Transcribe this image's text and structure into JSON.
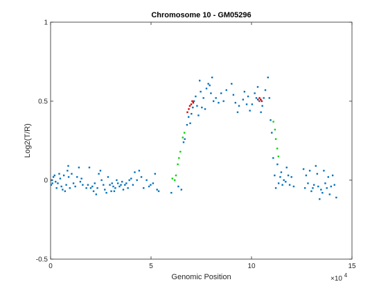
{
  "chart_data": {
    "type": "scatter",
    "title": "Chromosome 10 - GM05296",
    "xlabel": "Genomic Position",
    "ylabel": "Log2(T/R)",
    "x_exponent_label": "×10",
    "x_exponent_power": "4",
    "xlim": [
      0,
      150000
    ],
    "ylim": [
      -0.5,
      1
    ],
    "x_ticks": [
      {
        "value": 0,
        "label": "0"
      },
      {
        "value": 50000,
        "label": "5"
      },
      {
        "value": 100000,
        "label": "10"
      },
      {
        "value": 150000,
        "label": "15"
      }
    ],
    "y_ticks": [
      {
        "value": -0.5,
        "label": "-0.5"
      },
      {
        "value": 0,
        "label": "0"
      },
      {
        "value": 0.5,
        "label": "0.5"
      },
      {
        "value": 1,
        "label": "1"
      }
    ],
    "grid": false,
    "box": true,
    "series": [
      {
        "color": "#0072BD",
        "marker": "dot",
        "points": [
          [
            300,
            -0.03
          ],
          [
            600,
            0.0
          ],
          [
            900,
            -0.02
          ],
          [
            1400,
            0.02
          ],
          [
            2000,
            0.03
          ],
          [
            2500,
            -0.01
          ],
          [
            3000,
            -0.05
          ],
          [
            3600,
            -0.02
          ],
          [
            4300,
            0.04
          ],
          [
            4800,
            0.01
          ],
          [
            5400,
            -0.04
          ],
          [
            6000,
            -0.06
          ],
          [
            6600,
            0.03
          ],
          [
            7200,
            -0.07
          ],
          [
            7800,
            -0.03
          ],
          [
            8400,
            0.06
          ],
          [
            8800,
            0.09
          ],
          [
            9000,
            0.02
          ],
          [
            9600,
            -0.05
          ],
          [
            10500,
            0.04
          ],
          [
            11400,
            -0.02
          ],
          [
            12300,
            -0.04
          ],
          [
            13200,
            0.02
          ],
          [
            14100,
            0.08
          ],
          [
            14800,
            -0.01
          ],
          [
            15400,
            0.01
          ],
          [
            16000,
            -0.03
          ],
          [
            17800,
            -0.05
          ],
          [
            18600,
            -0.03
          ],
          [
            19300,
            0.08
          ],
          [
            20000,
            -0.05
          ],
          [
            20800,
            -0.04
          ],
          [
            21400,
            -0.07
          ],
          [
            22000,
            -0.02
          ],
          [
            22700,
            -0.09
          ],
          [
            23300,
            -0.05
          ],
          [
            24000,
            0.04
          ],
          [
            24800,
            0.06
          ],
          [
            25400,
            0.0
          ],
          [
            26300,
            -0.03
          ],
          [
            27000,
            -0.06
          ],
          [
            27800,
            -0.08
          ],
          [
            28600,
            0.02
          ],
          [
            29500,
            -0.03
          ],
          [
            30200,
            -0.07
          ],
          [
            30600,
            -0.02
          ],
          [
            31200,
            -0.04
          ],
          [
            31700,
            -0.07
          ],
          [
            32200,
            -0.05
          ],
          [
            32900,
            0.0
          ],
          [
            33500,
            -0.02
          ],
          [
            34300,
            -0.04
          ],
          [
            35000,
            -0.03
          ],
          [
            35600,
            -0.01
          ],
          [
            36200,
            -0.06
          ],
          [
            37000,
            -0.03
          ],
          [
            37700,
            -0.02
          ],
          [
            38500,
            -0.05
          ],
          [
            39200,
            0.0
          ],
          [
            40100,
            0.01
          ],
          [
            41000,
            -0.03
          ],
          [
            41900,
            0.05
          ],
          [
            43000,
            0.0
          ],
          [
            44100,
            0.06
          ],
          [
            45200,
            0.02
          ],
          [
            46300,
            -0.05
          ],
          [
            47800,
            0.0
          ],
          [
            49000,
            -0.04
          ],
          [
            49800,
            -0.03
          ],
          [
            51000,
            -0.02
          ],
          [
            52000,
            0.04
          ],
          [
            53000,
            -0.06
          ],
          [
            53800,
            -0.07
          ],
          [
            60100,
            -0.08
          ],
          [
            63600,
            -0.04
          ],
          [
            65100,
            -0.06
          ],
          [
            66200,
            0.24
          ],
          [
            66800,
            0.26
          ],
          [
            67900,
            0.35
          ],
          [
            68700,
            0.4
          ],
          [
            69500,
            0.36
          ],
          [
            70100,
            0.42
          ],
          [
            70800,
            0.46
          ],
          [
            71400,
            0.5
          ],
          [
            72200,
            0.53
          ],
          [
            72900,
            0.47
          ],
          [
            73600,
            0.41
          ],
          [
            74200,
            0.63
          ],
          [
            74700,
            0.56
          ],
          [
            75300,
            0.46
          ],
          [
            76100,
            0.52
          ],
          [
            76900,
            0.45
          ],
          [
            77600,
            0.58
          ],
          [
            78500,
            0.61
          ],
          [
            79200,
            0.6
          ],
          [
            79800,
            0.55
          ],
          [
            80400,
            0.65
          ],
          [
            81100,
            0.5
          ],
          [
            82300,
            0.52
          ],
          [
            83600,
            0.49
          ],
          [
            84900,
            0.55
          ],
          [
            86100,
            0.5
          ],
          [
            87500,
            0.57
          ],
          [
            90100,
            0.61
          ],
          [
            91000,
            0.54
          ],
          [
            92000,
            0.49
          ],
          [
            93100,
            0.43
          ],
          [
            93800,
            0.47
          ],
          [
            95800,
            0.51
          ],
          [
            96500,
            0.56
          ],
          [
            97600,
            0.48
          ],
          [
            98300,
            0.53
          ],
          [
            99200,
            0.44
          ],
          [
            100300,
            0.48
          ],
          [
            101600,
            0.55
          ],
          [
            102400,
            0.52
          ],
          [
            103100,
            0.59
          ],
          [
            103900,
            0.5
          ],
          [
            104700,
            0.43
          ],
          [
            105400,
            0.47
          ],
          [
            106100,
            0.52
          ],
          [
            106900,
            0.57
          ],
          [
            108200,
            0.65
          ],
          [
            108900,
            0.52
          ],
          [
            109500,
            0.38
          ],
          [
            110100,
            0.3
          ],
          [
            110800,
            0.14
          ],
          [
            111500,
            0.03
          ],
          [
            112100,
            -0.05
          ],
          [
            112900,
            0.1
          ],
          [
            113500,
            -0.02
          ],
          [
            114300,
            0.02
          ],
          [
            114800,
            0.05
          ],
          [
            115400,
            -0.03
          ],
          [
            116100,
            0.0
          ],
          [
            117000,
            -0.01
          ],
          [
            117500,
            0.08
          ],
          [
            118300,
            0.03
          ],
          [
            119000,
            -0.03
          ],
          [
            119900,
            0.02
          ],
          [
            121000,
            -0.04
          ],
          [
            125900,
            0.07
          ],
          [
            126600,
            -0.05
          ],
          [
            127200,
            0.03
          ],
          [
            128100,
            -0.02
          ],
          [
            129000,
            0.06
          ],
          [
            129800,
            -0.07
          ],
          [
            130500,
            -0.05
          ],
          [
            131100,
            -0.03
          ],
          [
            132000,
            0.09
          ],
          [
            132700,
            0.04
          ],
          [
            133200,
            -0.04
          ],
          [
            133900,
            -0.12
          ],
          [
            134600,
            -0.06
          ],
          [
            135300,
            -0.08
          ],
          [
            136000,
            0.06
          ],
          [
            136700,
            -0.02
          ],
          [
            137500,
            -0.05
          ],
          [
            138200,
            0.02
          ],
          [
            138900,
            -0.09
          ],
          [
            139600,
            -0.04
          ],
          [
            140400,
            0.03
          ],
          [
            141300,
            -0.03
          ],
          [
            142200,
            -0.11
          ]
        ]
      },
      {
        "color": "#00D400",
        "marker": "dot",
        "points": [
          [
            60600,
            0.01
          ],
          [
            61800,
            0.0
          ],
          [
            62400,
            0.03
          ],
          [
            63300,
            0.1
          ],
          [
            63900,
            0.14
          ],
          [
            64600,
            0.18
          ],
          [
            65800,
            0.27
          ],
          [
            66600,
            0.3
          ],
          [
            110900,
            0.37
          ],
          [
            111700,
            0.32
          ],
          [
            112100,
            0.26
          ],
          [
            112800,
            0.2
          ],
          [
            113400,
            0.15
          ]
        ]
      },
      {
        "color": "#D40000",
        "marker": "dot",
        "points": [
          [
            68100,
            0.43
          ],
          [
            68800,
            0.45
          ],
          [
            69300,
            0.47
          ],
          [
            70000,
            0.48
          ],
          [
            70500,
            0.5
          ],
          [
            71000,
            0.49
          ],
          [
            103200,
            0.51
          ],
          [
            104000,
            0.52
          ],
          [
            104600,
            0.51
          ],
          [
            105100,
            0.5
          ]
        ]
      }
    ]
  }
}
